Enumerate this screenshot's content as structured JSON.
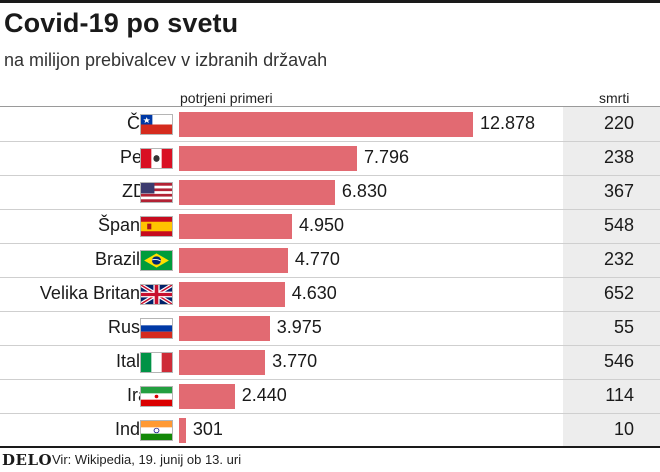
{
  "chart_data": {
    "type": "bar",
    "orientation": "horizontal",
    "title": "Covid-19 po svetu",
    "subtitle": "na milijon prebivalcev v izbranih državah",
    "column_headers": {
      "bars": "potrjeni primeri",
      "deaths": "smrti"
    },
    "categories": [
      "Čile",
      "Peru",
      "ZDA",
      "Španija",
      "Brazilija",
      "Velika Britanija",
      "Rusija",
      "Italija",
      "Iran",
      "Indija"
    ],
    "flags": [
      "flag-chile-icon",
      "flag-peru-icon",
      "flag-usa-icon",
      "flag-spain-icon",
      "flag-brazil-icon",
      "flag-uk-icon",
      "flag-russia-icon",
      "flag-italy-icon",
      "flag-iran-icon",
      "flag-india-icon"
    ],
    "series": [
      {
        "name": "potrjeni primeri",
        "values": [
          12878,
          7796,
          6830,
          4950,
          4770,
          4630,
          3975,
          3770,
          2440,
          301
        ]
      },
      {
        "name": "smrti",
        "values": [
          220,
          238,
          367,
          548,
          232,
          652,
          55,
          546,
          114,
          10
        ]
      }
    ],
    "value_labels": [
      "12.878",
      "7.796",
      "6.830",
      "4.950",
      "4.770",
      "4.630",
      "3.975",
      "3.770",
      "2.440",
      "301"
    ],
    "death_labels": [
      "220",
      "238",
      "367",
      "548",
      "232",
      "652",
      "55",
      "546",
      "114",
      "10"
    ],
    "xlim": [
      0,
      13500
    ],
    "colors": {
      "bar": "#e26a72",
      "deaths_panel": "#ededed"
    }
  },
  "footer": {
    "logo": "DELO",
    "source": "Vir: Wikipedia, 19. junij ob 13. uri"
  }
}
